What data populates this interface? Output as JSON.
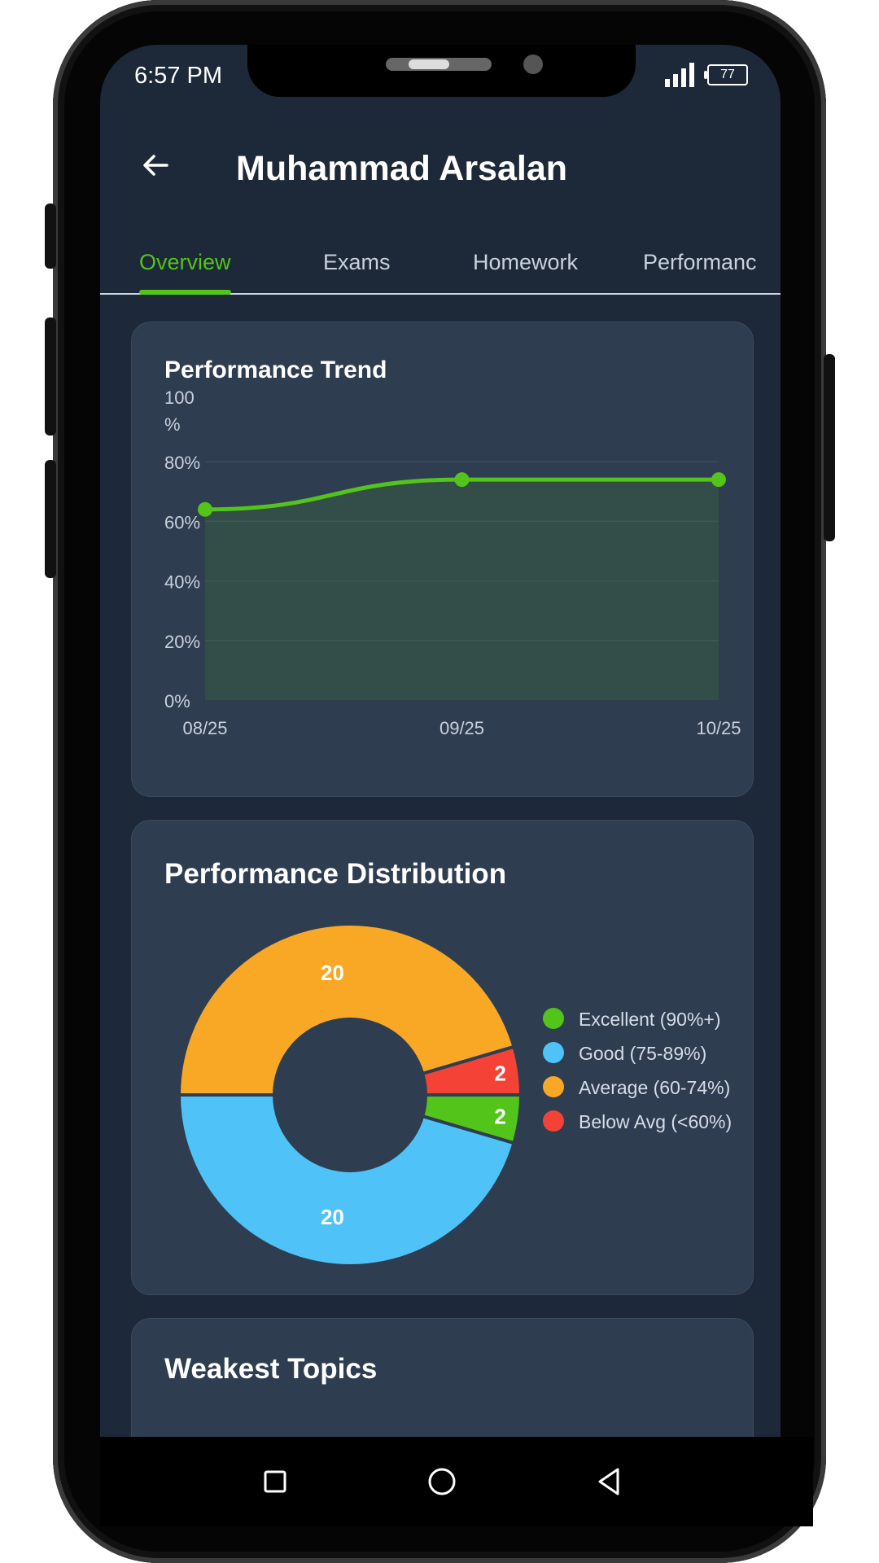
{
  "status": {
    "time": "6:57 PM",
    "battery": "77"
  },
  "header": {
    "title": "Muhammad Arsalan",
    "back_icon": "arrow-left-icon"
  },
  "tabs": [
    {
      "label": "Overview",
      "active": true
    },
    {
      "label": "Exams",
      "active": false
    },
    {
      "label": "Homework",
      "active": false
    },
    {
      "label": "Performance",
      "active": false
    }
  ],
  "colors": {
    "accent": "#52c41a",
    "excellent": "#52c41a",
    "good": "#4fc3f7",
    "average": "#f9a826",
    "below": "#f44336"
  },
  "trend_card": {
    "title": "Performance Trend"
  },
  "distribution_card": {
    "title": "Performance Distribution"
  },
  "weakest_card": {
    "title": "Weakest Topics"
  },
  "chart_data": [
    {
      "type": "area",
      "title": "Performance Trend",
      "x": [
        "08/25",
        "09/25",
        "10/25"
      ],
      "y_ticks": [
        "100\n%",
        "80%",
        "60%",
        "40%",
        "20%",
        "0%"
      ],
      "series": [
        {
          "values": [
            64,
            74,
            74
          ]
        }
      ],
      "ylim": [
        0,
        100
      ],
      "grid": true
    },
    {
      "type": "pie",
      "title": "Performance Distribution",
      "donut": true,
      "slices": [
        {
          "label": "Excellent (90%+)",
          "value": 2,
          "color": "#52c41a"
        },
        {
          "label": "Good (75-89%)",
          "value": 20,
          "color": "#4fc3f7"
        },
        {
          "label": "Average (60-74%)",
          "value": 20,
          "color": "#f9a826"
        },
        {
          "label": "Below Avg (<60%)",
          "value": 2,
          "color": "#f44336"
        }
      ],
      "legend": "right"
    }
  ],
  "navbar": {
    "square": "square-icon",
    "home": "circle-icon",
    "back": "triangle-back-icon"
  }
}
